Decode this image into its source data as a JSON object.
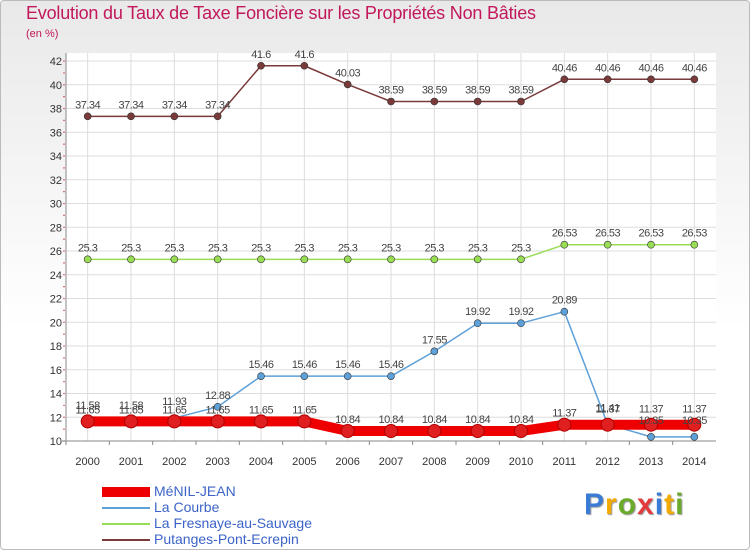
{
  "chart_data": {
    "type": "line",
    "title": "Evolution du Taux de Taxe Foncière sur les Propriétés Non Bâties",
    "ylabel": "(en %)",
    "xlabel": "",
    "ylim": [
      10,
      42
    ],
    "yticks": [
      10,
      12,
      14,
      16,
      18,
      20,
      22,
      24,
      26,
      28,
      30,
      32,
      34,
      36,
      38,
      40,
      42
    ],
    "categories": [
      "2000",
      "2001",
      "2002",
      "2003",
      "2004",
      "2005",
      "2006",
      "2007",
      "2008",
      "2009",
      "2010",
      "2011",
      "2012",
      "2013",
      "2014"
    ],
    "series": [
      {
        "name": "MéNIL-JEAN",
        "color": "#ee0000",
        "values": [
          11.65,
          11.65,
          11.65,
          11.65,
          11.65,
          11.65,
          10.84,
          10.84,
          10.84,
          10.84,
          10.84,
          11.37,
          11.37,
          11.37,
          11.37
        ],
        "labels": [
          "11.65",
          "11.65",
          "11.65",
          "11.65",
          "11.65",
          "11.65",
          "10.84",
          "10.84",
          "10.84",
          "10.84",
          "10.84",
          "11.37",
          "11.37",
          "11.37",
          "11.37"
        ]
      },
      {
        "name": "La Courbe",
        "color": "#5ea0d8",
        "values": [
          11.58,
          11.58,
          11.93,
          12.88,
          15.46,
          15.46,
          15.46,
          15.46,
          17.55,
          19.92,
          19.92,
          20.89,
          11.41,
          10.35,
          10.35
        ],
        "labels": [
          "11.58",
          "11.58",
          "11.93",
          "12.88",
          "15.46",
          "15.46",
          "15.46",
          "15.46",
          "17.55",
          "19.92",
          "19.92",
          "20.89",
          "11.41",
          "10.35",
          "10.35"
        ]
      },
      {
        "name": "La Fresnaye-au-Sauvage",
        "color": "#99dd55",
        "values": [
          25.3,
          25.3,
          25.3,
          25.3,
          25.3,
          25.3,
          25.3,
          25.3,
          25.3,
          25.3,
          25.3,
          26.53,
          26.53,
          26.53,
          26.53
        ],
        "labels": [
          "25.3",
          "25.3",
          "25.3",
          "25.3",
          "25.3",
          "25.3",
          "25.3",
          "25.3",
          "25.3",
          "25.3",
          "25.3",
          "26.53",
          "26.53",
          "26.53",
          "26.53"
        ]
      },
      {
        "name": "Putanges-Pont-Ecrepin",
        "color": "#7a3a3a",
        "values": [
          37.34,
          37.34,
          37.34,
          37.34,
          41.6,
          41.6,
          40.03,
          38.59,
          38.59,
          38.59,
          38.59,
          40.46,
          40.46,
          40.46,
          40.46
        ],
        "labels": [
          "37.34",
          "37.34",
          "37.34",
          "37.34",
          "41.6",
          "41.6",
          "40.03",
          "38.59",
          "38.59",
          "38.59",
          "38.59",
          "40.46",
          "40.46",
          "40.46",
          "40.46"
        ]
      }
    ],
    "legend_position": "bottom-left",
    "grid": true
  },
  "brand": {
    "letters": [
      "P",
      "r",
      "o",
      "x",
      "i",
      "t",
      "i"
    ],
    "colors": [
      "#3a7bd5",
      "#f2a900",
      "#6aaa2a",
      "#e23b3b",
      "#3a7bd5",
      "#f2a900",
      "#6aaa2a"
    ]
  }
}
